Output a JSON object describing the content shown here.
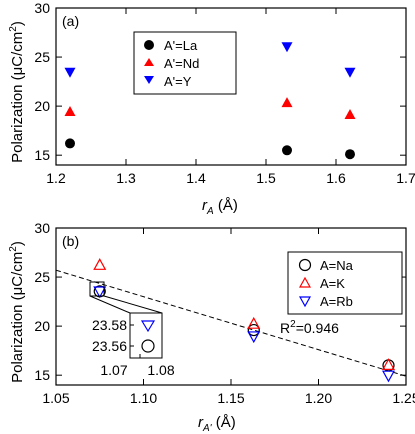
{
  "colors": {
    "black": "#000000",
    "red": "#ff0000",
    "blue": "#0000ff"
  },
  "chart_data": [
    {
      "type": "scatter",
      "panel_label": "(a)",
      "xlabel_main": "r",
      "xlabel_sub": "A",
      "xlabel_unit": " (Å)",
      "ylabel": "Polarization (μC/cm",
      "ylabel_sup": "2",
      "ylabel_close": ")",
      "xlim": [
        1.2,
        1.7
      ],
      "ylim": [
        14,
        30
      ],
      "xticks": [
        1.2,
        1.3,
        1.4,
        1.5,
        1.6,
        1.7
      ],
      "xtick_labels": [
        "1.2",
        "1.3",
        "1.4",
        "1.5",
        "1.6",
        "1.7"
      ],
      "yticks": [
        15,
        20,
        25,
        30
      ],
      "ytick_labels": [
        "15",
        "20",
        "25",
        "30"
      ],
      "legend_position": "top-center",
      "series": [
        {
          "name": "A'=La",
          "marker": "filled-circle",
          "color": "#000000",
          "x": [
            1.22,
            1.53,
            1.62
          ],
          "y": [
            16.2,
            15.5,
            15.1
          ]
        },
        {
          "name": "A'=Nd",
          "marker": "filled-triangle-up",
          "color": "#ff0000",
          "x": [
            1.22,
            1.53,
            1.62
          ],
          "y": [
            19.4,
            20.3,
            19.1
          ]
        },
        {
          "name": "A'=Y",
          "marker": "filled-triangle-down",
          "color": "#0000ff",
          "x": [
            1.22,
            1.53,
            1.62
          ],
          "y": [
            23.5,
            26.1,
            23.5
          ]
        }
      ]
    },
    {
      "type": "scatter",
      "panel_label": "(b)",
      "xlabel_main": "r",
      "xlabel_sub": "A'",
      "xlabel_unit": " (Å)",
      "ylabel": "Polarization (μC/cm",
      "ylabel_sup": "2",
      "ylabel_close": ")",
      "xlim": [
        1.05,
        1.25
      ],
      "ylim": [
        14,
        30
      ],
      "xticks": [
        1.05,
        1.1,
        1.15,
        1.2,
        1.25
      ],
      "xtick_labels": [
        "1.05",
        "1.10",
        "1.15",
        "1.20",
        "1.25"
      ],
      "yticks": [
        15,
        20,
        25,
        30
      ],
      "ytick_labels": [
        "15",
        "20",
        "25",
        "30"
      ],
      "legend_position": "top-right",
      "series": [
        {
          "name": "A=Na",
          "marker": "open-circle",
          "color": "#000000",
          "x": [
            1.075,
            1.163,
            1.24
          ],
          "y": [
            23.55,
            19.6,
            16.0
          ]
        },
        {
          "name": "A=K",
          "marker": "open-triangle-up",
          "color": "#ff0000",
          "x": [
            1.075,
            1.163,
            1.24
          ],
          "y": [
            26.2,
            20.2,
            16.0
          ]
        },
        {
          "name": "A=Rb",
          "marker": "open-triangle-down",
          "color": "#0000ff",
          "x": [
            1.075,
            1.163,
            1.24
          ],
          "y": [
            23.58,
            19.0,
            15.0
          ]
        }
      ],
      "fit_line": {
        "style": "dashed",
        "x": [
          1.05,
          1.25
        ],
        "y": [
          25.7,
          14.9
        ]
      },
      "annotation": {
        "text": "R",
        "sup": "2",
        "rest": "=0.946"
      },
      "inset": {
        "xticks": [
          1.07,
          1.08
        ],
        "xtick_labels": [
          "1.07",
          "1.08"
        ],
        "yticks": [
          23.56,
          23.58
        ],
        "ytick_labels": [
          "23.56",
          "23.58"
        ]
      }
    }
  ]
}
